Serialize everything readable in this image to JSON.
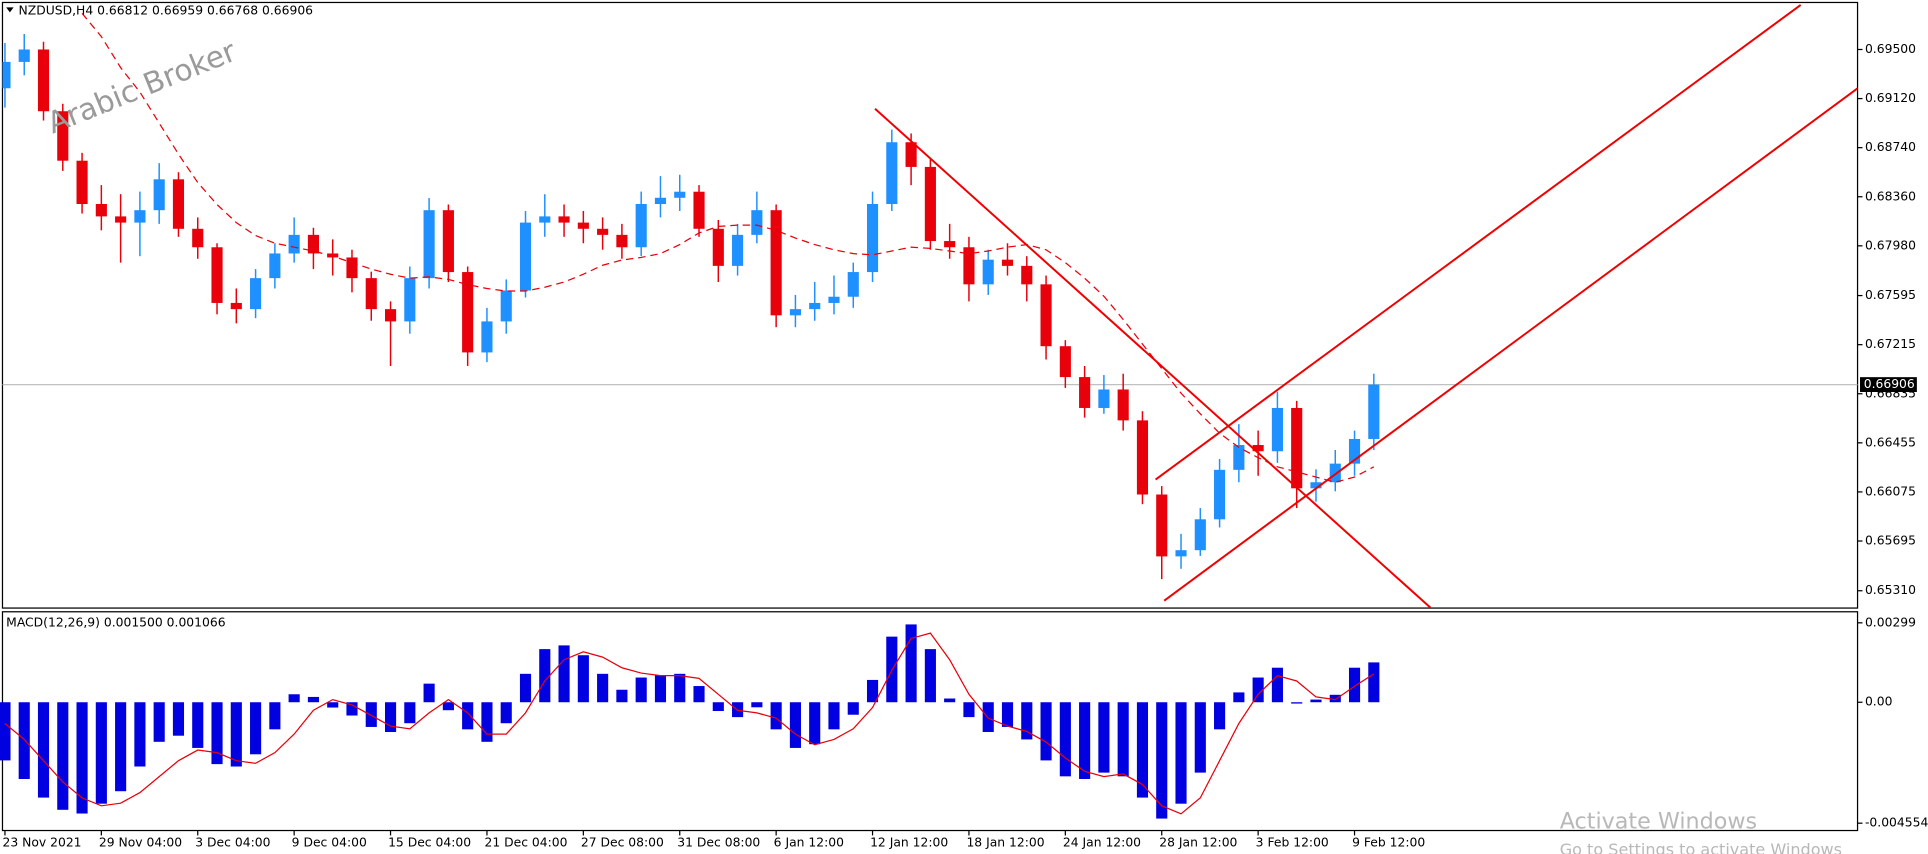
{
  "header": "NZDUSD,H4  0.66812 0.66959 0.66768 0.66906",
  "watermark": "Arabic Broker",
  "activation": {
    "title": "Activate Windows",
    "subtitle": "Go to Settings to activate Windows"
  },
  "chart_data": [
    {
      "type": "candlestick",
      "up_color": "#1e90ff",
      "down_color": "#e8000b",
      "open": [
        0.692,
        0.69404,
        0.695,
        0.69022,
        0.68639,
        0.68304,
        0.68208,
        0.6816,
        0.68256,
        0.68495,
        0.68112,
        0.67969,
        0.67538,
        0.6749,
        0.6773,
        0.67921,
        0.68065,
        0.67921,
        0.6789,
        0.6773,
        0.6749,
        0.67395,
        0.6773,
        0.68256,
        0.67777,
        0.67155,
        0.67395,
        0.67634,
        0.6816,
        0.68208,
        0.6816,
        0.68112,
        0.68065,
        0.67969,
        0.68304,
        0.68352,
        0.68399,
        0.68112,
        0.67825,
        0.68065,
        0.68256,
        0.67442,
        0.6749,
        0.67538,
        0.67586,
        0.67777,
        0.68304,
        0.68782,
        0.68591,
        0.68017,
        0.67969,
        0.67682,
        0.67873,
        0.67825,
        0.67682,
        0.67203,
        0.66964,
        0.66725,
        0.66868,
        0.66629,
        0.66055,
        0.65576,
        0.65624,
        0.65863,
        0.66246,
        0.66438,
        0.6639,
        0.66725,
        0.66103,
        0.6615,
        0.66294,
        0.66485
      ],
      "high": [
        0.6955,
        0.6962,
        0.6956,
        0.6908,
        0.687,
        0.6845,
        0.6838,
        0.684,
        0.6862,
        0.6855,
        0.682,
        0.68,
        0.6765,
        0.678,
        0.68,
        0.682,
        0.6812,
        0.6803,
        0.6795,
        0.6778,
        0.6755,
        0.6782,
        0.6835,
        0.683,
        0.6782,
        0.675,
        0.6772,
        0.6825,
        0.6838,
        0.683,
        0.6825,
        0.682,
        0.6815,
        0.684,
        0.6852,
        0.6853,
        0.6845,
        0.6818,
        0.6815,
        0.684,
        0.683,
        0.676,
        0.677,
        0.6775,
        0.6785,
        0.684,
        0.6888,
        0.6885,
        0.6865,
        0.6815,
        0.6805,
        0.6795,
        0.68,
        0.679,
        0.6775,
        0.6725,
        0.6705,
        0.6698,
        0.6699,
        0.667,
        0.6612,
        0.6575,
        0.6595,
        0.6633,
        0.666,
        0.6655,
        0.6685,
        0.6678,
        0.6625,
        0.664,
        0.6655,
        0.6699
      ],
      "low": [
        0.6905,
        0.693,
        0.6895,
        0.6856,
        0.6823,
        0.681,
        0.6785,
        0.679,
        0.6815,
        0.6805,
        0.6788,
        0.6745,
        0.6738,
        0.6742,
        0.6765,
        0.6785,
        0.678,
        0.6775,
        0.6762,
        0.674,
        0.6705,
        0.673,
        0.6765,
        0.677,
        0.6705,
        0.6708,
        0.673,
        0.6758,
        0.6805,
        0.6805,
        0.68,
        0.6795,
        0.6788,
        0.679,
        0.682,
        0.6825,
        0.6805,
        0.677,
        0.6775,
        0.68,
        0.6735,
        0.6735,
        0.674,
        0.6745,
        0.675,
        0.677,
        0.6825,
        0.6845,
        0.6795,
        0.6788,
        0.6755,
        0.676,
        0.6775,
        0.6755,
        0.671,
        0.6688,
        0.6665,
        0.6668,
        0.6655,
        0.6598,
        0.654,
        0.6548,
        0.6558,
        0.658,
        0.6615,
        0.662,
        0.663,
        0.6595,
        0.66,
        0.6608,
        0.662,
        0.664
      ],
      "close": [
        0.69404,
        0.695,
        0.69022,
        0.68639,
        0.68304,
        0.68208,
        0.6816,
        0.68256,
        0.68495,
        0.68112,
        0.67969,
        0.67538,
        0.6749,
        0.6773,
        0.67921,
        0.68065,
        0.67921,
        0.6789,
        0.6773,
        0.6749,
        0.67395,
        0.6773,
        0.68256,
        0.67777,
        0.67155,
        0.67395,
        0.67634,
        0.6816,
        0.68208,
        0.6816,
        0.68112,
        0.68065,
        0.67969,
        0.68304,
        0.68352,
        0.68399,
        0.68112,
        0.67825,
        0.68065,
        0.68256,
        0.67442,
        0.6749,
        0.67538,
        0.67586,
        0.67777,
        0.68304,
        0.68782,
        0.68591,
        0.68017,
        0.67969,
        0.67682,
        0.67873,
        0.67825,
        0.67682,
        0.67203,
        0.66964,
        0.66725,
        0.66868,
        0.66629,
        0.66055,
        0.65576,
        0.65624,
        0.65863,
        0.66246,
        0.66438,
        0.6639,
        0.66725,
        0.66103,
        0.6615,
        0.66294,
        0.66485,
        0.66906
      ],
      "ma": {
        "color": "#e8000b",
        "values": [
          null,
          null,
          null,
          null,
          0.6978,
          0.696,
          0.6936,
          0.6917,
          0.6893,
          0.6869,
          0.6847,
          0.683,
          0.6816,
          0.6806,
          0.68,
          0.6797,
          0.6794,
          0.679,
          0.6785,
          0.678,
          0.6776,
          0.6773,
          0.6774,
          0.6772,
          0.6768,
          0.6765,
          0.6763,
          0.6763,
          0.6766,
          0.677,
          0.6776,
          0.6783,
          0.6787,
          0.6789,
          0.6792,
          0.6799,
          0.6808,
          0.6813,
          0.6814,
          0.6814,
          0.681,
          0.6804,
          0.6799,
          0.6795,
          0.6792,
          0.6791,
          0.6794,
          0.6797,
          0.6796,
          0.6794,
          0.6792,
          0.6794,
          0.6797,
          0.6799,
          0.6795,
          0.6785,
          0.6773,
          0.6759,
          0.6741,
          0.6722,
          0.6703,
          0.6684,
          0.6668,
          0.6653,
          0.6642,
          0.6634,
          0.6627,
          0.6623,
          0.6619,
          0.6615,
          0.6619,
          0.6627
        ]
      },
      "last_price": 0.66906,
      "ylim": [
        0.65176,
        0.69864
      ],
      "yticks": [
        {
          "value": 0.695,
          "label": "0.69500"
        },
        {
          "value": 0.6912,
          "label": "0.69120"
        },
        {
          "value": 0.6874,
          "label": "0.68740"
        },
        {
          "value": 0.6836,
          "label": "0.68360"
        },
        {
          "value": 0.6798,
          "label": "0.67980"
        },
        0.67595,
        0.67215,
        0.66835,
        0.66455,
        0.66075,
        0.65695,
        {
          "value": 0.6531,
          "label": "0.65310"
        }
      ]
    },
    {
      "type": "macd",
      "title": "MACD(12,26,9) 0.001500 0.001066",
      "categories": [
        "23 Nov 2021",
        null,
        null,
        null,
        null,
        "29 Nov 04:00",
        null,
        null,
        null,
        null,
        "3 Dec 04:00",
        null,
        null,
        null,
        null,
        "9 Dec 04:00",
        null,
        null,
        null,
        null,
        "15 Dec 04:00",
        null,
        null,
        null,
        null,
        "21 Dec 04:00",
        null,
        null,
        null,
        null,
        "27 Dec 08:00",
        null,
        null,
        null,
        null,
        "31 Dec 08:00",
        null,
        null,
        null,
        null,
        "6 Jan 12:00",
        null,
        null,
        null,
        null,
        "12 Jan 12:00",
        null,
        null,
        null,
        null,
        "18 Jan 12:00",
        null,
        null,
        null,
        null,
        "24 Jan 12:00",
        null,
        null,
        null,
        null,
        "28 Jan 12:00",
        null,
        null,
        null,
        null,
        "3 Feb 12:00",
        null,
        null,
        null,
        null,
        "9 Feb 12:00",
        null
      ],
      "histogram": {
        "color": "#0000e0",
        "values": [
          -0.00219,
          -0.00289,
          -0.00359,
          -0.00405,
          -0.00419,
          -0.00382,
          -0.00335,
          -0.00242,
          -0.00149,
          -0.00126,
          -0.00172,
          -0.00233,
          -0.00242,
          -0.00196,
          -0.00102,
          0.0003,
          0.0002,
          -0.0002,
          -0.0005,
          -0.00093,
          -0.00112,
          -0.00079,
          0.0007,
          -0.0003,
          -0.00102,
          -0.00149,
          -0.00079,
          0.00107,
          0.002,
          0.00214,
          0.00177,
          0.00107,
          0.00047,
          0.00093,
          0.00102,
          0.00107,
          0.00061,
          -0.00033,
          -0.00056,
          -0.00019,
          -0.00102,
          -0.00172,
          -0.00158,
          -0.00102,
          -0.00047,
          0.00084,
          0.00247,
          0.00293,
          0.002,
          0.00014,
          -0.00056,
          -0.00112,
          -0.00093,
          -0.0014,
          -0.00219,
          -0.00279,
          -0.00289,
          -0.00265,
          -0.00279,
          -0.00359,
          -0.00438,
          -0.00382,
          -0.00265,
          -0.00102,
          0.00037,
          0.00093,
          0.0013,
          -5e-05,
          0.0001,
          0.00028,
          0.0013,
          0.0015
        ]
      },
      "signal": {
        "color": "#e8000b",
        "values": [
          -0.0008,
          -0.0014,
          -0.0022,
          -0.003,
          -0.0036,
          -0.0039,
          -0.0038,
          -0.0034,
          -0.0028,
          -0.0022,
          -0.0018,
          -0.0019,
          -0.0022,
          -0.0023,
          -0.0019,
          -0.0012,
          -0.0003,
          0.0001,
          -0.0001,
          -0.0005,
          -0.0009,
          -0.001,
          -0.0004,
          0.0001,
          -0.0004,
          -0.0012,
          -0.0012,
          -0.0004,
          0.0008,
          0.0016,
          0.0019,
          0.0017,
          0.0013,
          0.0011,
          0.001,
          0.001,
          0.0009,
          0.0003,
          -0.0003,
          -0.0004,
          -0.0006,
          -0.0012,
          -0.0016,
          -0.0014,
          -0.001,
          -0.0002,
          0.0012,
          0.0024,
          0.0026,
          0.0016,
          0.0003,
          -0.0006,
          -0.0009,
          -0.0011,
          -0.0015,
          -0.0021,
          -0.0026,
          -0.0028,
          -0.0027,
          -0.0031,
          -0.0039,
          -0.0042,
          -0.0036,
          -0.0022,
          -0.0008,
          0.0003,
          0.001,
          0.0008,
          0.0002,
          0.0001,
          0.0006,
          0.001066
        ]
      },
      "ylim": [
        -0.00483,
        0.00336
      ],
      "yticks": [
        0.00299,
        {
          "value": 0,
          "label": "0.00"
        },
        -0.004554
      ]
    }
  ]
}
